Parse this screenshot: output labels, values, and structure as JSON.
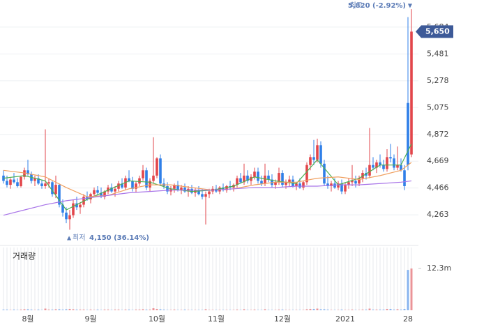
{
  "chart_data": {
    "type": "candlestick",
    "up_color": "#e2464b",
    "down_color": "#2f7fe8",
    "ylim": [
      4042,
      5863
    ],
    "yticks": [
      {
        "value": 4263,
        "label": "4,263"
      },
      {
        "value": 4466,
        "label": "4,466"
      },
      {
        "value": 4669,
        "label": "4,669"
      },
      {
        "value": 4872,
        "label": "4,872"
      },
      {
        "value": 5075,
        "label": "5,075"
      },
      {
        "value": 5278,
        "label": "5,278"
      },
      {
        "value": 5481,
        "label": "5,481"
      },
      {
        "value": 5684,
        "label": "5,684"
      }
    ],
    "grid": true,
    "x_labels": [
      {
        "label": "8월",
        "index": 7
      },
      {
        "label": "9월",
        "index": 25
      },
      {
        "label": "10월",
        "index": 44
      },
      {
        "label": "11월",
        "index": 61
      },
      {
        "label": "12월",
        "index": 80
      },
      {
        "label": "2021",
        "index": 98
      },
      {
        "label": "28",
        "index": 116
      }
    ],
    "candles": [
      [
        4560,
        4600,
        4500,
        4520
      ],
      [
        4520,
        4560,
        4470,
        4490
      ],
      [
        4490,
        4540,
        4460,
        4530
      ],
      [
        4530,
        4580,
        4500,
        4510
      ],
      [
        4510,
        4540,
        4470,
        4480
      ],
      [
        4480,
        4560,
        4470,
        4550
      ],
      [
        4550,
        4620,
        4530,
        4600
      ],
      [
        4600,
        4680,
        4560,
        4570
      ],
      [
        4570,
        4590,
        4500,
        4520
      ],
      [
        4520,
        4560,
        4480,
        4540
      ],
      [
        4540,
        4570,
        4490,
        4500
      ],
      [
        4500,
        4530,
        4460,
        4480
      ],
      [
        4480,
        4910,
        4460,
        4500
      ],
      [
        4500,
        4540,
        4470,
        4510
      ],
      [
        4510,
        4520,
        4400,
        4420
      ],
      [
        4420,
        4560,
        4390,
        4490
      ],
      [
        4490,
        4500,
        4320,
        4340
      ],
      [
        4340,
        4380,
        4250,
        4280
      ],
      [
        4280,
        4320,
        4200,
        4230
      ],
      [
        4230,
        4300,
        4150,
        4260
      ],
      [
        4260,
        4380,
        4240,
        4350
      ],
      [
        4350,
        4400,
        4300,
        4320
      ],
      [
        4320,
        4360,
        4270,
        4340
      ],
      [
        4340,
        4420,
        4320,
        4400
      ],
      [
        4400,
        4440,
        4370,
        4380
      ],
      [
        4380,
        4430,
        4350,
        4420
      ],
      [
        4420,
        4470,
        4400,
        4450
      ],
      [
        4450,
        4480,
        4410,
        4430
      ],
      [
        4430,
        4470,
        4390,
        4400
      ],
      [
        4400,
        4450,
        4380,
        4440
      ],
      [
        4440,
        4490,
        4420,
        4470
      ],
      [
        4470,
        4500,
        4430,
        4440
      ],
      [
        4440,
        4480,
        4400,
        4460
      ],
      [
        4460,
        4520,
        4440,
        4500
      ],
      [
        4500,
        4540,
        4460,
        4470
      ],
      [
        4470,
        4560,
        4450,
        4540
      ],
      [
        4540,
        4600,
        4510,
        4520
      ],
      [
        4520,
        4550,
        4440,
        4460
      ],
      [
        4460,
        4520,
        4430,
        4500
      ],
      [
        4500,
        4560,
        4480,
        4540
      ],
      [
        4540,
        4640,
        4520,
        4600
      ],
      [
        4600,
        4620,
        4450,
        4470
      ],
      [
        4470,
        4540,
        4440,
        4520
      ],
      [
        4520,
        4850,
        4500,
        4560
      ],
      [
        4560,
        4700,
        4540,
        4690
      ],
      [
        4690,
        4720,
        4480,
        4500
      ],
      [
        4500,
        4540,
        4460,
        4480
      ],
      [
        4480,
        4510,
        4420,
        4440
      ],
      [
        4440,
        4480,
        4410,
        4460
      ],
      [
        4460,
        4500,
        4430,
        4490
      ],
      [
        4490,
        4520,
        4440,
        4450
      ],
      [
        4450,
        4490,
        4420,
        4470
      ],
      [
        4470,
        4500,
        4430,
        4440
      ],
      [
        4440,
        4480,
        4400,
        4460
      ],
      [
        4460,
        4490,
        4420,
        4430
      ],
      [
        4430,
        4470,
        4400,
        4450
      ],
      [
        4450,
        4480,
        4410,
        4420
      ],
      [
        4420,
        4460,
        4380,
        4400
      ],
      [
        4400,
        4440,
        4190,
        4420
      ],
      [
        4420,
        4460,
        4390,
        4440
      ],
      [
        4440,
        4480,
        4420,
        4460
      ],
      [
        4460,
        4490,
        4430,
        4440
      ],
      [
        4440,
        4480,
        4420,
        4470
      ],
      [
        4470,
        4500,
        4440,
        4450
      ],
      [
        4450,
        4490,
        4430,
        4480
      ],
      [
        4480,
        4520,
        4450,
        4470
      ],
      [
        4470,
        4500,
        4440,
        4490
      ],
      [
        4490,
        4560,
        4470,
        4540
      ],
      [
        4540,
        4580,
        4500,
        4510
      ],
      [
        4510,
        4650,
        4490,
        4560
      ],
      [
        4560,
        4600,
        4500,
        4520
      ],
      [
        4520,
        4570,
        4490,
        4550
      ],
      [
        4550,
        4620,
        4530,
        4590
      ],
      [
        4590,
        4620,
        4500,
        4520
      ],
      [
        4520,
        4560,
        4480,
        4500
      ],
      [
        4500,
        4650,
        4480,
        4560
      ],
      [
        4560,
        4600,
        4510,
        4530
      ],
      [
        4530,
        4570,
        4470,
        4490
      ],
      [
        4490,
        4530,
        4460,
        4510
      ],
      [
        4510,
        4620,
        4490,
        4580
      ],
      [
        4580,
        4600,
        4470,
        4490
      ],
      [
        4490,
        4530,
        4460,
        4510
      ],
      [
        4510,
        4560,
        4480,
        4530
      ],
      [
        4530,
        4560,
        4470,
        4480
      ],
      [
        4480,
        4510,
        4450,
        4500
      ],
      [
        4500,
        4540,
        4460,
        4470
      ],
      [
        4470,
        4520,
        4450,
        4510
      ],
      [
        4510,
        4660,
        4490,
        4640
      ],
      [
        4640,
        4720,
        4600,
        4700
      ],
      [
        4700,
        4830,
        4640,
        4680
      ],
      [
        4680,
        4840,
        4660,
        4790
      ],
      [
        4790,
        4820,
        4620,
        4650
      ],
      [
        4650,
        4680,
        4480,
        4500
      ],
      [
        4500,
        4560,
        4460,
        4480
      ],
      [
        4480,
        4520,
        4440,
        4500
      ],
      [
        4500,
        4540,
        4460,
        4470
      ],
      [
        4470,
        4520,
        4450,
        4500
      ],
      [
        4500,
        4530,
        4420,
        4440
      ],
      [
        4440,
        4510,
        4420,
        4490
      ],
      [
        4490,
        4540,
        4460,
        4510
      ],
      [
        4510,
        4640,
        4480,
        4520
      ],
      [
        4520,
        4560,
        4470,
        4500
      ],
      [
        4500,
        4560,
        4480,
        4540
      ],
      [
        4540,
        4600,
        4510,
        4580
      ],
      [
        4580,
        4620,
        4530,
        4560
      ],
      [
        4560,
        4920,
        4540,
        4640
      ],
      [
        4640,
        4700,
        4600,
        4620
      ],
      [
        4620,
        4680,
        4580,
        4660
      ],
      [
        4660,
        4720,
        4620,
        4640
      ],
      [
        4640,
        4680,
        4590,
        4610
      ],
      [
        4610,
        4760,
        4590,
        4700
      ],
      [
        4700,
        4800,
        4660,
        4690
      ],
      [
        4690,
        4720,
        4600,
        4620
      ],
      [
        4620,
        4780,
        4600,
        4640
      ],
      [
        4640,
        4690,
        4590,
        4600
      ],
      [
        4600,
        4640,
        4450,
        4480
      ],
      [
        5110,
        5760,
        4600,
        4640
      ],
      [
        4720,
        5820,
        4700,
        5650
      ]
    ],
    "ma_x": [
      0,
      6,
      12,
      18,
      24,
      30,
      36,
      42,
      48,
      54,
      60,
      66,
      72,
      78,
      84,
      90,
      96,
      102,
      108,
      114,
      117
    ],
    "ma_series": [
      {
        "color": "#4caf50",
        "values": [
          4540,
          4560,
          4520,
          4300,
          4380,
          4450,
          4520,
          4510,
          4460,
          4440,
          4450,
          4480,
          4550,
          4520,
          4500,
          4680,
          4490,
          4540,
          4640,
          4640,
          4800
        ]
      },
      {
        "color": "#f0a060",
        "values": [
          4600,
          4580,
          4550,
          4470,
          4400,
          4410,
          4460,
          4490,
          4490,
          4470,
          4450,
          4460,
          4490,
          4510,
          4510,
          4540,
          4550,
          4530,
          4560,
          4600,
          4660
        ]
      },
      {
        "color": "#a874e8",
        "values": [
          4260,
          4300,
          4340,
          4370,
          4390,
          4410,
          4430,
          4440,
          4450,
          4450,
          4450,
          4460,
          4470,
          4470,
          4480,
          4480,
          4490,
          4490,
          4500,
          4510,
          4520
        ]
      }
    ],
    "volume_title": "거래량",
    "vlim": [
      0,
      18.5
    ],
    "vticks": [
      {
        "value": 12.3,
        "label": "12.3m"
      }
    ],
    "volume": [
      0.2,
      0.2,
      0.1,
      0.2,
      0.1,
      0.2,
      0.3,
      0.3,
      0.2,
      0.1,
      0.2,
      0.1,
      0.5,
      0.2,
      0.2,
      0.3,
      0.3,
      0.2,
      0.3,
      0.4,
      0.3,
      0.2,
      0.2,
      0.2,
      0.1,
      0.2,
      0.1,
      0.2,
      0.1,
      0.2,
      0.2,
      0.1,
      0.2,
      0.2,
      0.1,
      0.2,
      0.2,
      0.1,
      0.2,
      0.2,
      0.3,
      0.2,
      0.2,
      0.6,
      0.4,
      0.3,
      0.2,
      0.1,
      0.1,
      0.2,
      0.1,
      0.1,
      0.2,
      0.1,
      0.1,
      0.1,
      0.1,
      0.1,
      0.3,
      0.1,
      0.1,
      0.1,
      0.1,
      0.1,
      0.1,
      0.1,
      0.1,
      0.2,
      0.1,
      0.3,
      0.1,
      0.1,
      0.2,
      0.1,
      0.1,
      0.3,
      0.1,
      0.1,
      0.1,
      0.2,
      0.2,
      0.1,
      0.1,
      0.1,
      0.1,
      0.1,
      0.1,
      0.3,
      0.4,
      0.4,
      0.5,
      0.3,
      0.3,
      0.2,
      0.1,
      0.1,
      0.1,
      0.2,
      0.1,
      0.1,
      0.2,
      0.1,
      0.1,
      0.2,
      0.2,
      0.5,
      0.2,
      0.2,
      0.2,
      0.2,
      0.4,
      0.4,
      0.2,
      0.3,
      0.2,
      0.4,
      11.9,
      12.3
    ],
    "high_label": "최고",
    "high_value": "5,820 (-2.92%)",
    "low_label": "최저",
    "low_value": "4,150 (36.14%)",
    "last_price": "5,650"
  }
}
